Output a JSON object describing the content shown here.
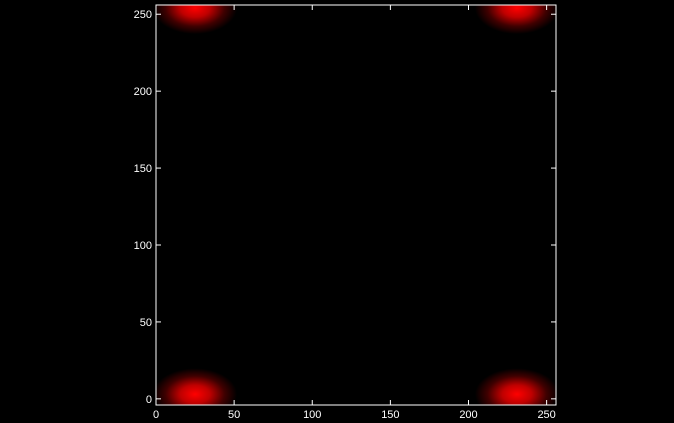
{
  "chart_data": {
    "type": "heatmap",
    "title": "",
    "xlabel": "",
    "ylabel": "",
    "xlim": [
      0,
      256
    ],
    "ylim": [
      -4,
      256
    ],
    "x_ticks": [
      0,
      50,
      100,
      150,
      200,
      250
    ],
    "y_ticks": [
      0,
      50,
      100,
      150,
      200,
      250
    ],
    "x_tick_labels": [
      "0",
      "50",
      "100",
      "150",
      "200",
      "250"
    ],
    "y_tick_labels": [
      "0",
      "50",
      "100",
      "150",
      "200",
      "250"
    ],
    "grid": false,
    "colormap": "black-to-red",
    "colors": {
      "background": "#000000",
      "axes": "#ffffff",
      "peak": "#ff0000"
    },
    "hotspots": [
      {
        "x": 25,
        "y": 3
      },
      {
        "x": 231,
        "y": 3
      },
      {
        "x": 25,
        "y": 254
      },
      {
        "x": 231,
        "y": 254
      }
    ]
  }
}
